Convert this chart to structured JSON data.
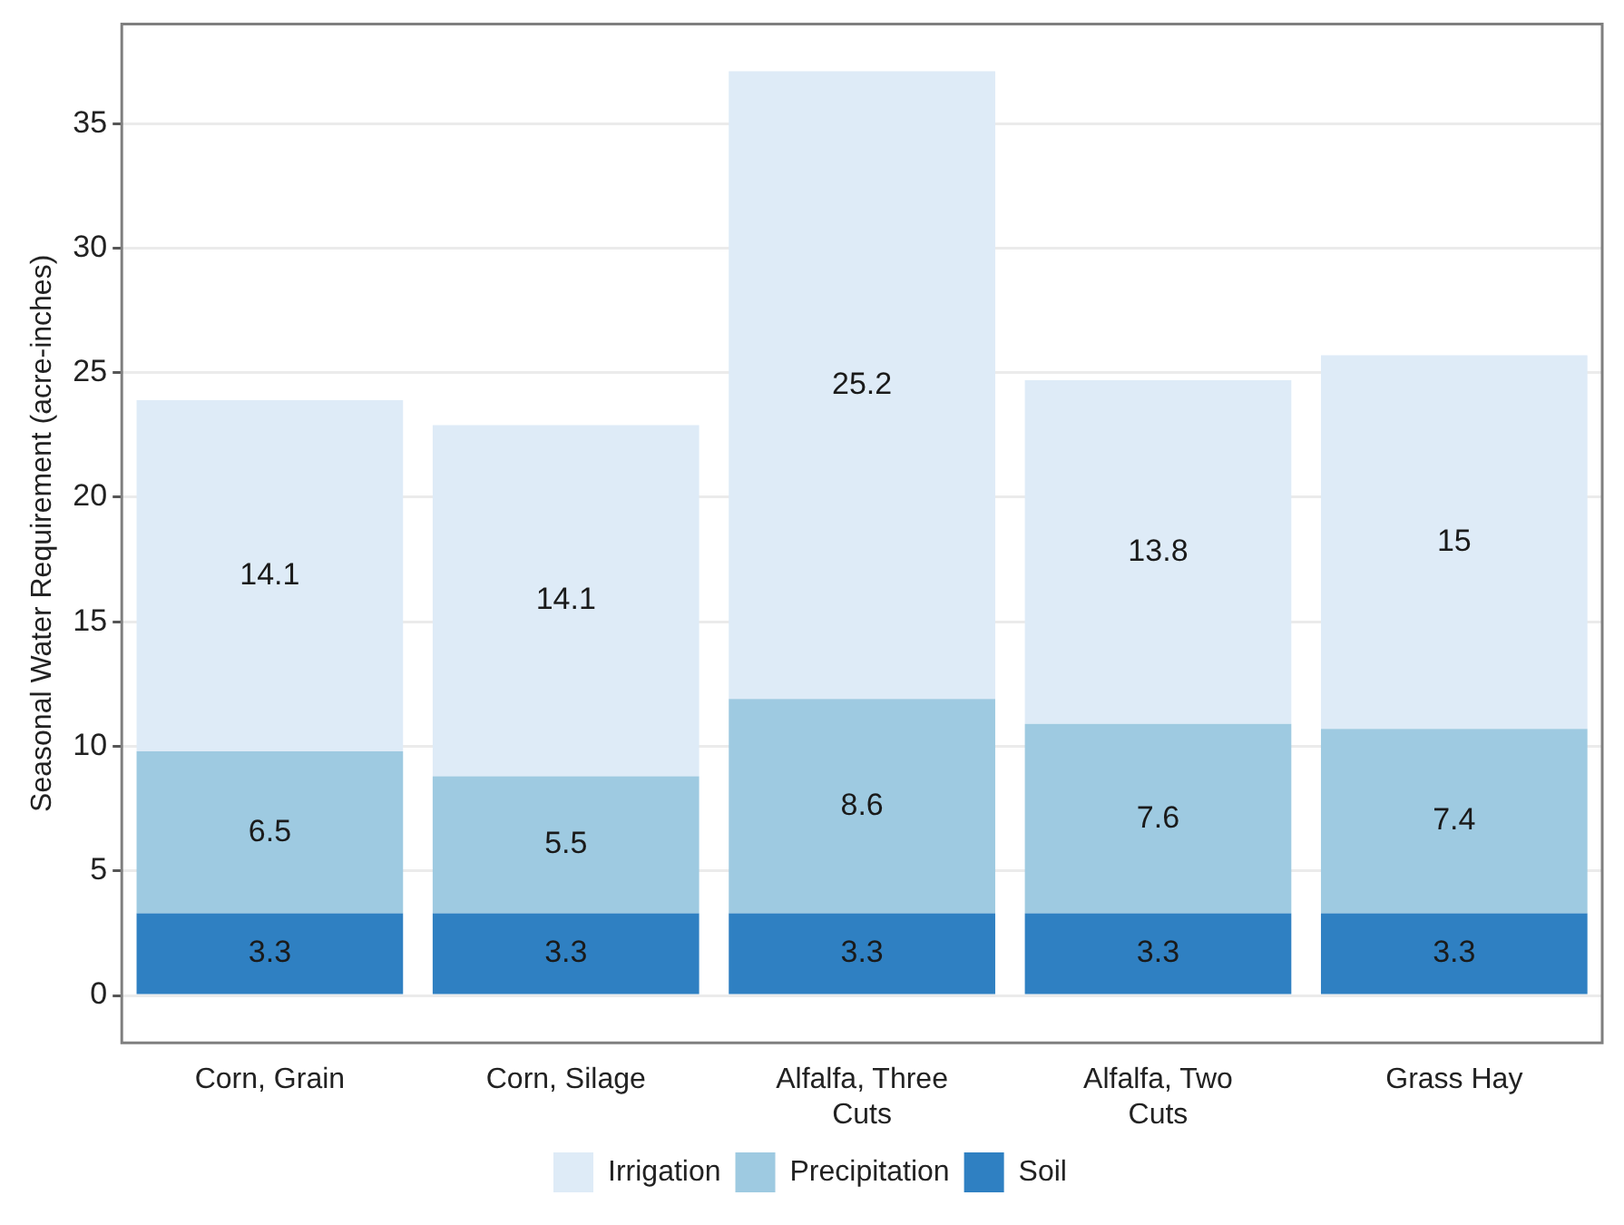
{
  "chart_data": {
    "type": "bar",
    "stacked": true,
    "ylabel": "Seasonal Water Requirement (acre-inches)",
    "categories": [
      [
        "Corn, Grain"
      ],
      [
        "Corn, Silage"
      ],
      [
        "Alfalfa, Three",
        "Cuts"
      ],
      [
        "Alfalfa, Two",
        "Cuts"
      ],
      [
        "Grass Hay"
      ]
    ],
    "series": [
      {
        "name": "Soil",
        "color": "#2f80c2",
        "values": [
          3.3,
          3.3,
          3.3,
          3.3,
          3.3
        ]
      },
      {
        "name": "Precipitation",
        "color": "#9ecae1",
        "values": [
          6.5,
          5.5,
          8.6,
          7.6,
          7.4
        ]
      },
      {
        "name": "Irrigation",
        "color": "#deebf7",
        "values": [
          14.1,
          14.1,
          25.2,
          13.8,
          15
        ]
      }
    ],
    "ylim": [
      -1.9,
      39
    ],
    "yticks": [
      0,
      5,
      10,
      15,
      20,
      25,
      30,
      35
    ],
    "grid": "y",
    "legend": "bottom",
    "data_labels": true
  }
}
